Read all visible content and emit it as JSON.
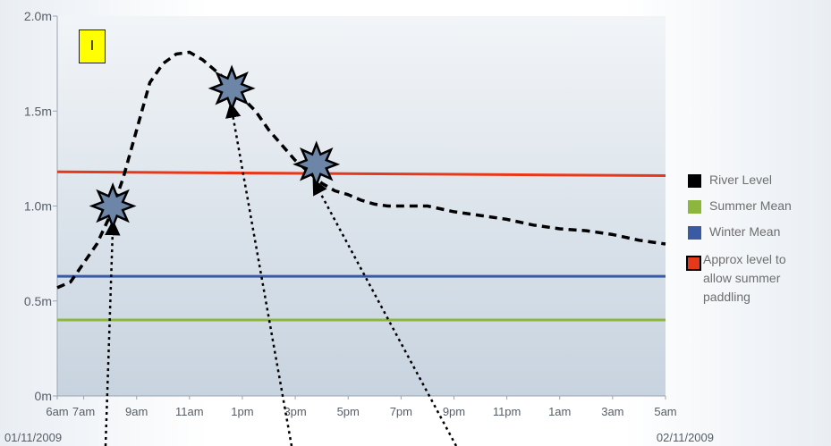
{
  "chart_data": {
    "type": "line",
    "x_ticks": [
      "6am",
      "7am",
      "9am",
      "11am",
      "1pm",
      "3pm",
      "5pm",
      "7pm",
      "9pm",
      "11pm",
      "1am",
      "3am",
      "5am"
    ],
    "y_ticks": [
      "0m",
      "0.5m",
      "1.0m",
      "1.5m",
      "2.0m"
    ],
    "ylim": [
      0,
      2.0
    ],
    "start_date": "01/11/2009",
    "end_date": "02/11/2009",
    "box_label": "I",
    "series": [
      {
        "name": "River Level",
        "color": "#000000",
        "style": "dashed",
        "values": [
          [
            6,
            0.57
          ],
          [
            6.5,
            0.6
          ],
          [
            7,
            0.7
          ],
          [
            7.5,
            0.8
          ],
          [
            8,
            0.95
          ],
          [
            8.5,
            1.15
          ],
          [
            9,
            1.4
          ],
          [
            9.5,
            1.65
          ],
          [
            10,
            1.75
          ],
          [
            10.5,
            1.8
          ],
          [
            11,
            1.81
          ],
          [
            11.5,
            1.77
          ],
          [
            12,
            1.71
          ],
          [
            12.5,
            1.65
          ],
          [
            13,
            1.57
          ],
          [
            13.5,
            1.5
          ],
          [
            14,
            1.4
          ],
          [
            14.5,
            1.32
          ],
          [
            15,
            1.24
          ],
          [
            15.5,
            1.18
          ],
          [
            16,
            1.12
          ],
          [
            16.5,
            1.08
          ],
          [
            17,
            1.06
          ],
          [
            17.5,
            1.03
          ],
          [
            18,
            1.01
          ],
          [
            18.5,
            1.0
          ],
          [
            19,
            1.0
          ],
          [
            20,
            1.0
          ],
          [
            21,
            0.97
          ],
          [
            22,
            0.95
          ],
          [
            23,
            0.93
          ],
          [
            24,
            0.9
          ],
          [
            25,
            0.88
          ],
          [
            26,
            0.87
          ],
          [
            27,
            0.85
          ],
          [
            28,
            0.82
          ],
          [
            29,
            0.8
          ]
        ]
      },
      {
        "name": "Summer Mean",
        "color": "#8db63c",
        "values": [
          [
            6,
            0.4
          ],
          [
            29,
            0.4
          ]
        ]
      },
      {
        "name": "Winter Mean",
        "color": "#3a5ba3",
        "values": [
          [
            6,
            0.63
          ],
          [
            29,
            0.63
          ]
        ]
      },
      {
        "name": "Approx level to allow summer paddling",
        "color": "#e8381a",
        "values": [
          [
            6,
            1.18
          ],
          [
            29,
            1.16
          ]
        ]
      }
    ],
    "annotations": [
      {
        "x": 8.1,
        "y": 1.0
      },
      {
        "x": 12.6,
        "y": 1.62
      },
      {
        "x": 15.8,
        "y": 1.22
      }
    ]
  },
  "legend": {
    "items": [
      {
        "label": "River Level",
        "color": "#000000"
      },
      {
        "label": "Summer Mean",
        "color": "#8db63c"
      },
      {
        "label": "Winter Mean",
        "color": "#3a5ba3"
      },
      {
        "label_lines": [
          "Approx level to",
          "allow summer",
          "paddling"
        ],
        "color": "#e8381a"
      }
    ]
  },
  "colors": {
    "plot_top": "#f2f5f8",
    "plot_bottom": "#c7d3df",
    "star_fill": "#6d86a8"
  }
}
